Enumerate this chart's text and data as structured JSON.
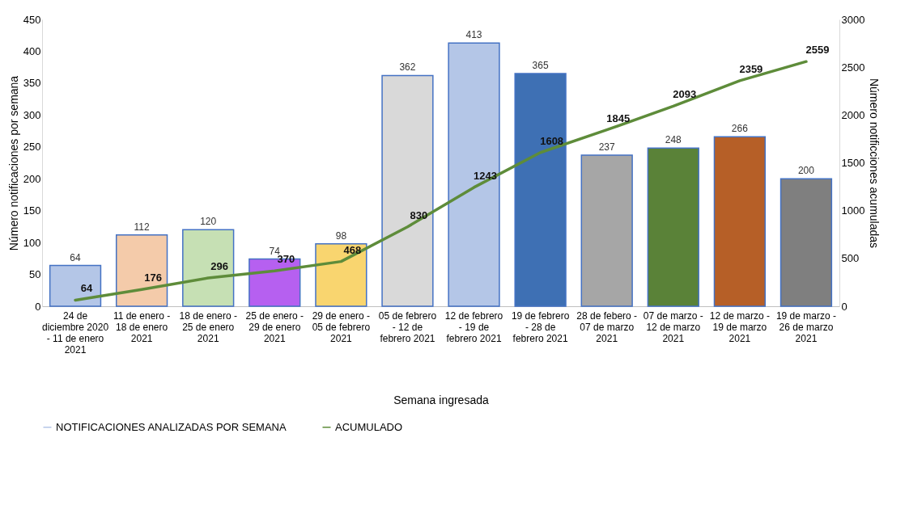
{
  "chart_data": {
    "type": "bar",
    "xlabel": "Semana ingresada",
    "ylabel": "Número notificaciones por semana",
    "y2label": "Número notificciones acumuladas",
    "categories": [
      "24 de diciembre 2020 - 11 de enero 2021",
      "11 de enero - 18 de enero 2021",
      "18 de enero - 25 de enero 2021",
      "25 de enero - 29 de enero 2021",
      "29 de enero - 05 de febrero 2021",
      "05 de febrero - 12 de febrero 2021",
      "12 de febrero - 19 de febrero 2021",
      "19 de febrero - 28 de febrero 2021",
      "28 de febero - 07 de marzo 2021",
      "07 de marzo - 12 de marzo 2021",
      "12 de marzo - 19 de marzo 2021",
      "19 de marzo - 26 de marzo 2021"
    ],
    "series": [
      {
        "name": "NOTIFICACIONES ANALIZADAS POR SEMANA",
        "color": "#b4c6e7",
        "colors": [
          "#b4c6e7",
          "#f4cbaa",
          "#c6e0b4",
          "#b660f0",
          "#f9d56f",
          "#d9d9d9",
          "#b4c6e7",
          "#3e70b4",
          "#a6a6a6",
          "#5a8238",
          "#b65f27",
          "#7f7f7f"
        ],
        "values": [
          64,
          112,
          120,
          74,
          98,
          362,
          413,
          365,
          237,
          248,
          266,
          200
        ]
      },
      {
        "name": "ACUMULADO",
        "type": "line",
        "axis": "y2",
        "color": "#5e8c3a",
        "values": [
          64,
          176,
          296,
          370,
          468,
          830,
          1243,
          1608,
          1845,
          2093,
          2359,
          2559
        ]
      }
    ],
    "ylim": [
      0,
      450
    ],
    "yticks": [
      0,
      50,
      100,
      150,
      200,
      250,
      300,
      350,
      400,
      450
    ],
    "y2lim": [
      0,
      3000
    ],
    "y2ticks": [
      0,
      500,
      1000,
      1500,
      2000,
      2500,
      3000
    ],
    "data_labels": true,
    "grid": false,
    "legend": "bottom"
  }
}
